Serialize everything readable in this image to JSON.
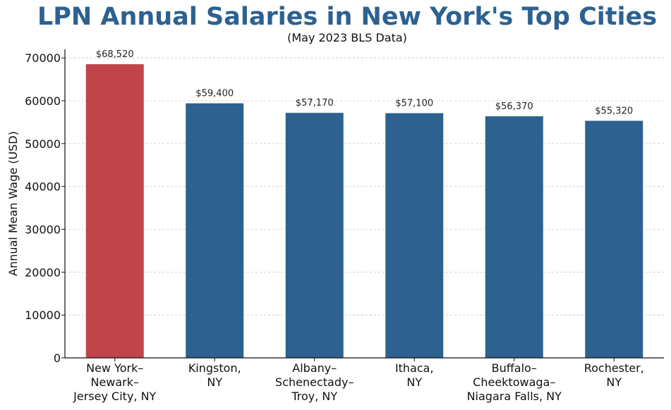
{
  "chart_data": {
    "type": "bar",
    "title": "LPN Annual Salaries in New York's Top Cities",
    "subtitle": "(May 2023 BLS Data)",
    "ylabel": "Annual Mean Wage (USD)",
    "xlabel": "",
    "categories": [
      [
        "New York–",
        "Newark–",
        "Jersey City, NY"
      ],
      [
        "Kingston,",
        "NY"
      ],
      [
        "Albany–",
        "Schenectady–",
        "Troy, NY"
      ],
      [
        "Ithaca,",
        "NY"
      ],
      [
        "Buffalo–",
        "Cheektowaga–",
        "Niagara Falls, NY"
      ],
      [
        "Rochester,",
        "NY"
      ]
    ],
    "values": [
      68520,
      59400,
      57170,
      57100,
      56370,
      55320
    ],
    "data_labels": [
      "$68,520",
      "$59,400",
      "$57,170",
      "$57,100",
      "$56,370",
      "$55,320"
    ],
    "ylim": [
      0,
      72000
    ],
    "yticks": [
      0,
      10000,
      20000,
      30000,
      40000,
      50000,
      60000,
      70000
    ],
    "grid": true,
    "colors": {
      "highlight": "#c0454a",
      "default": "#2d6190",
      "title": "#2d6190",
      "grid": "#c8c8c8"
    },
    "highlight_index": 0
  }
}
